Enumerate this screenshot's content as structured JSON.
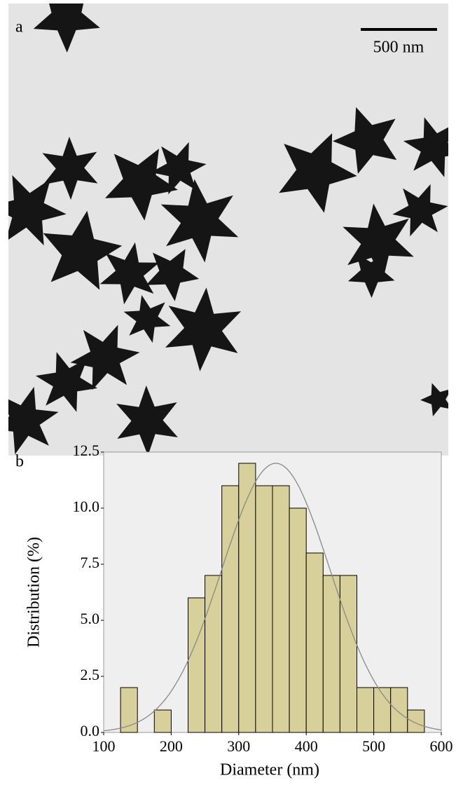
{
  "panel_a": {
    "label": "a",
    "scale_bar": "500 nm"
  },
  "chart_data": {
    "type": "histogram",
    "panel_label": "b",
    "x_label": "Diameter (nm)",
    "y_label": "Distribution (%)",
    "bins": [
      125,
      150,
      175,
      200,
      225,
      250,
      275,
      300,
      325,
      350,
      375,
      400,
      425,
      450,
      475,
      500,
      525,
      550,
      575
    ],
    "values": [
      2,
      0,
      1,
      0,
      6,
      7,
      11,
      12,
      11,
      11,
      10,
      8,
      7,
      7,
      2,
      2,
      2,
      1
    ],
    "color": "#d8d09a",
    "fit": {
      "mean": 355,
      "sd": 80,
      "peak": 12,
      "color": "#888888"
    },
    "xlim": [
      100,
      600
    ],
    "xticks": [
      100,
      200,
      300,
      400,
      500,
      600
    ],
    "ylim": [
      0,
      12.5
    ],
    "yticks": [
      {
        "value": 0,
        "label": "0.0"
      },
      2.5,
      {
        "value": 5,
        "label": "5.0"
      },
      7.5,
      {
        "value": 10,
        "label": "10.0"
      },
      12.5
    ],
    "grid": false
  }
}
